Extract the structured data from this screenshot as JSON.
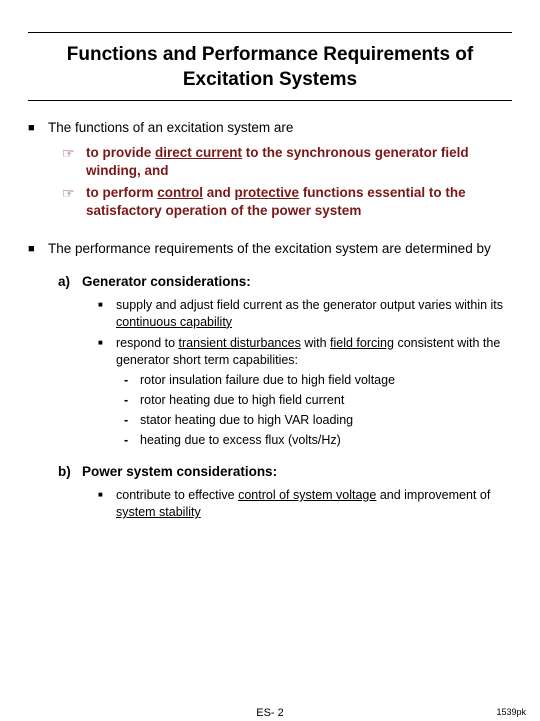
{
  "title": "Functions and Performance Requirements of Excitation Systems",
  "intro1": "The functions of an excitation system are",
  "p1a_pre": "to provide ",
  "p1a_u": "direct current",
  "p1a_post": " to the synchronous generator field winding, and",
  "p1b_pre": "to perform ",
  "p1b_u1": "control",
  "p1b_mid": " and ",
  "p1b_u2": "protective",
  "p1b_post": " functions essential to the satisfactory operation of the power system",
  "intro2": "The performance requirements of the excitation system are determined by",
  "a_label": "a)",
  "a_title": "Generator considerations:",
  "a1_pre": "supply and adjust field current as the generator output varies within its ",
  "a1_u": "continuous capability",
  "a2_pre": "respond to ",
  "a2_u1": "transient disturbances",
  "a2_mid": " with ",
  "a2_u2": "field forcing",
  "a2_post": " consistent with the generator short term capabilities:",
  "d1": "rotor insulation failure due to high field voltage",
  "d2": "rotor heating due to high field current",
  "d3": "stator heating due to high VAR loading",
  "d4": "heating due to excess flux (volts/Hz)",
  "b_label": "b)",
  "b_title": "Power system considerations:",
  "b1_pre": "contribute to effective ",
  "b1_u1": "control of system voltage",
  "b1_mid": " and improvement of ",
  "b1_u2": "system stability",
  "page_num": "ES- 2",
  "stamp": "1539pk"
}
